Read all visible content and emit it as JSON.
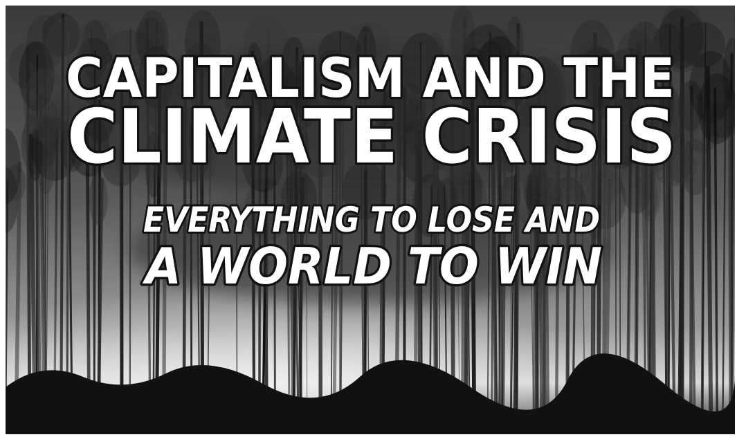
{
  "poster": {
    "title_line1": "CAPITALISM AND THE",
    "title_line2": "CLIMATE CRISIS",
    "subtitle_line1": "EVERYTHING TO LOSE AND",
    "subtitle_line2": "A WORLD TO WIN"
  }
}
